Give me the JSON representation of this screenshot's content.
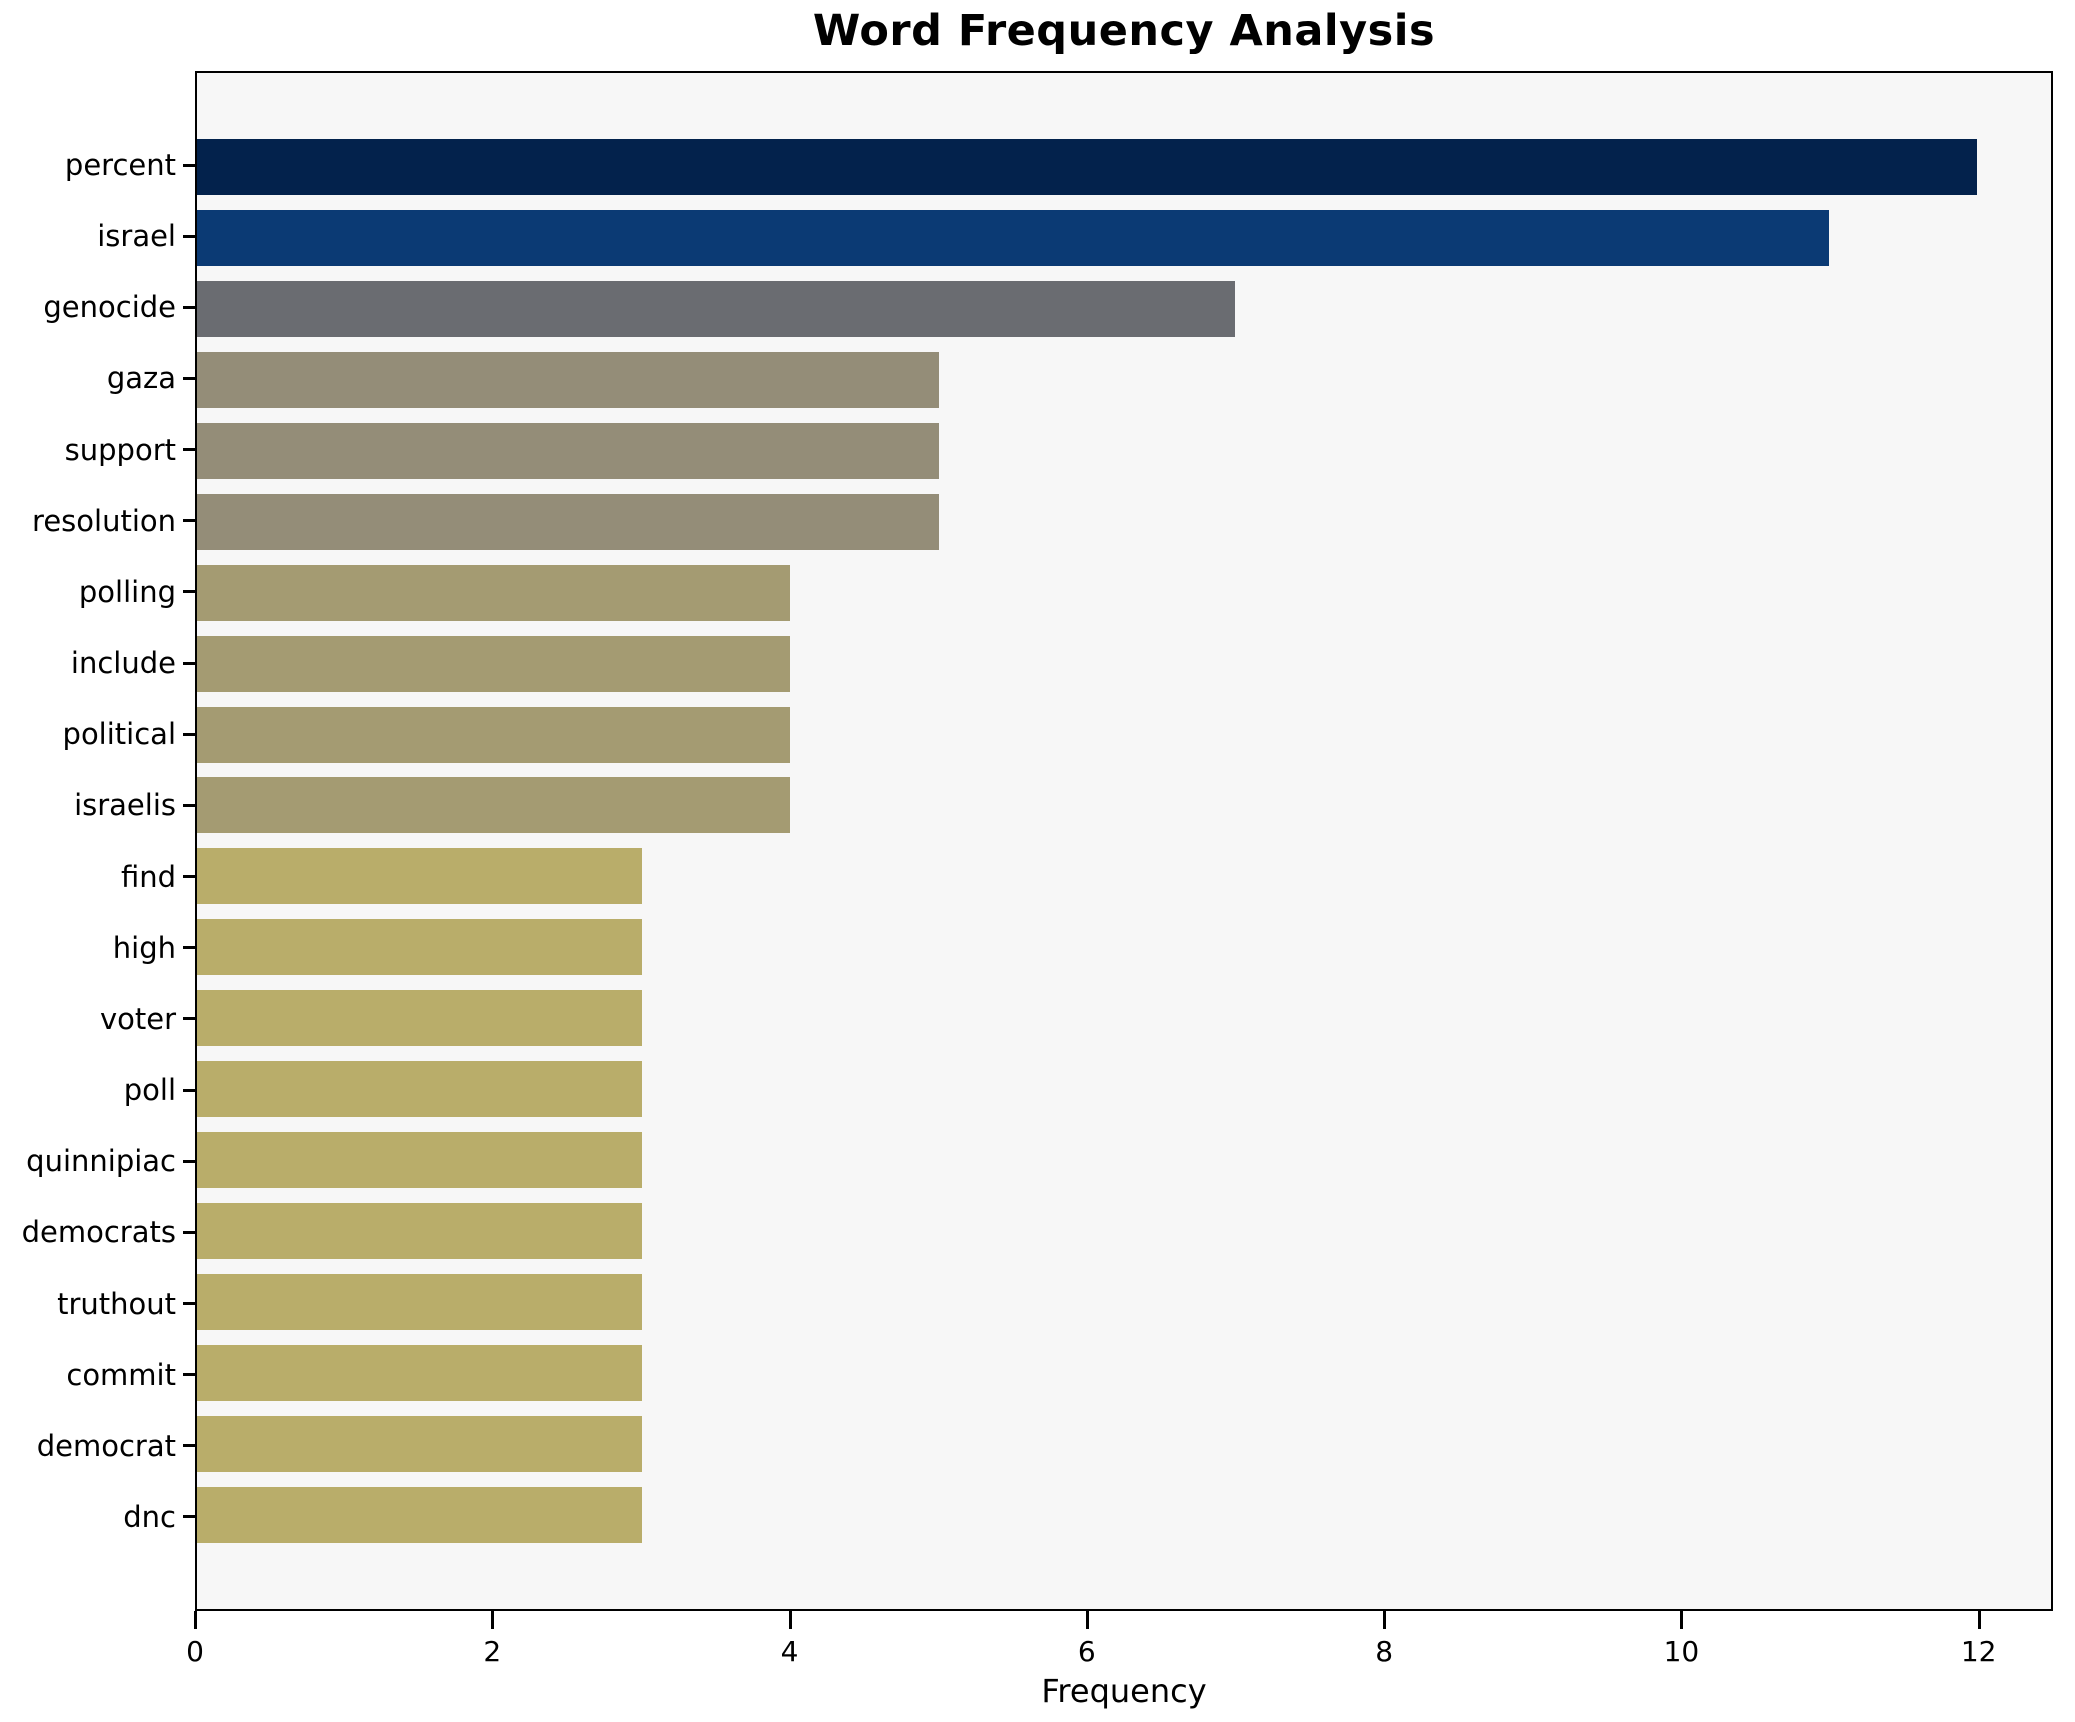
{
  "chart_data": {
    "type": "bar",
    "orientation": "horizontal",
    "title": "Word Frequency Analysis",
    "xlabel": "Frequency",
    "ylabel": "",
    "categories": [
      "percent",
      "israel",
      "genocide",
      "gaza",
      "support",
      "resolution",
      "polling",
      "include",
      "political",
      "israelis",
      "find",
      "high",
      "voter",
      "poll",
      "quinnipiac",
      "democrats",
      "truthout",
      "commit",
      "democrat",
      "dnc"
    ],
    "values": [
      12,
      11,
      7,
      5,
      5,
      5,
      4,
      4,
      4,
      4,
      3,
      3,
      3,
      3,
      3,
      3,
      3,
      3,
      3,
      3
    ],
    "bar_colors": [
      "#03224c",
      "#0b3a74",
      "#6a6c71",
      "#948d78",
      "#948d78",
      "#948d78",
      "#a49b72",
      "#a49b72",
      "#a49b72",
      "#a49b72",
      "#b9ad6a",
      "#b9ad6a",
      "#b9ad6a",
      "#b9ad6a",
      "#b9ad6a",
      "#b9ad6a",
      "#b9ad6a",
      "#b9ad6a",
      "#b9ad6a",
      "#b9ad6a"
    ],
    "xticks": [
      0,
      2,
      4,
      6,
      8,
      10,
      12
    ],
    "xlim": [
      0,
      12.5
    ],
    "grid": false,
    "legend_position": "none",
    "plot_background": "#f7f7f7",
    "figure_background": "#ffffff",
    "spine_color": "#000000",
    "text_color": "#000000"
  }
}
